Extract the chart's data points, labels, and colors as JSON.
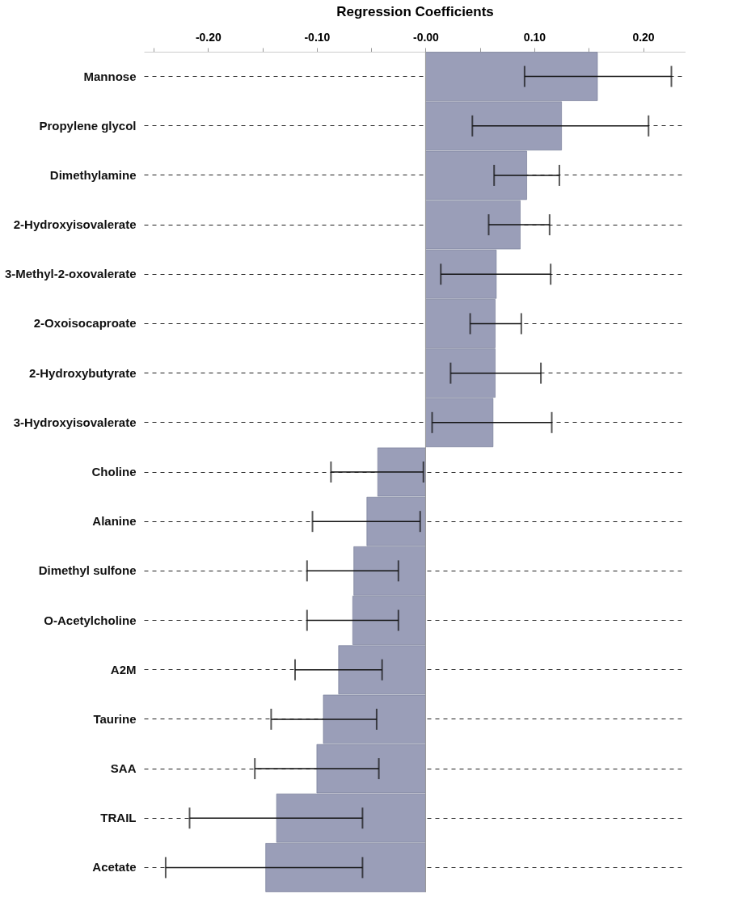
{
  "chart_data": {
    "type": "bar",
    "orientation": "horizontal",
    "xlabel": "Regression Coefficients",
    "categories": [
      "Mannose",
      "Propylene glycol",
      "Dimethylamine",
      "2-Hydroxyisovalerate",
      "3-Methyl-2-oxovalerate",
      "2-Oxoisocaproate",
      "2-Hydroxybutyrate",
      "3-Hydroxyisovalerate",
      "Choline",
      "Alanine",
      "Dimethyl sulfone",
      "O-Acetylcholine",
      "A2M",
      "Taurine",
      "SAA",
      "TRAIL",
      "Acetate"
    ],
    "values": [
      0.158,
      0.125,
      0.093,
      0.087,
      0.065,
      0.064,
      0.064,
      0.062,
      -0.044,
      -0.054,
      -0.066,
      -0.067,
      -0.08,
      -0.094,
      -0.1,
      -0.137,
      -0.147
    ],
    "errors": [
      [
        0.091,
        0.226
      ],
      [
        0.043,
        0.205
      ],
      [
        0.063,
        0.123
      ],
      [
        0.058,
        0.114
      ],
      [
        0.014,
        0.115
      ],
      [
        0.041,
        0.088
      ],
      [
        0.023,
        0.106
      ],
      [
        0.006,
        0.116
      ],
      [
        -0.087,
        -0.002
      ],
      [
        -0.104,
        -0.005
      ],
      [
        -0.109,
        -0.025
      ],
      [
        -0.109,
        -0.025
      ],
      [
        -0.12,
        -0.04
      ],
      [
        -0.142,
        -0.045
      ],
      [
        -0.157,
        -0.043
      ],
      [
        -0.217,
        -0.058
      ],
      [
        -0.239,
        -0.058
      ]
    ],
    "color": "#9a9eb8",
    "xlim": [
      -0.259,
      0.239
    ],
    "xticks": [
      {
        "value": -0.25,
        "label": null
      },
      {
        "value": -0.2,
        "label": "-0.20"
      },
      {
        "value": -0.15,
        "label": null
      },
      {
        "value": -0.1,
        "label": "-0.10"
      },
      {
        "value": -0.05,
        "label": null
      },
      {
        "value": 0,
        "label": "-0.00"
      },
      {
        "value": 0.05,
        "label": null
      },
      {
        "value": 0.1,
        "label": "0.10"
      },
      {
        "value": 0.15,
        "label": null
      },
      {
        "value": 0.2,
        "label": "0.20"
      }
    ],
    "grid": "y",
    "ref_lines": [
      {
        "axis": "x",
        "value": 0
      }
    ]
  }
}
